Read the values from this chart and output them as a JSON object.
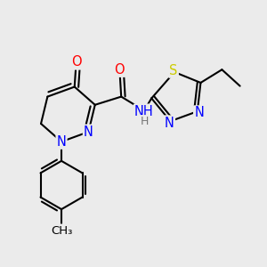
{
  "bg_color": "#ebebeb",
  "bond_color": "#000000",
  "bond_width": 1.5,
  "atom_colors": {
    "N": "#0000ff",
    "O": "#ff0000",
    "S": "#cccc00",
    "C": "#000000",
    "H": "#777777"
  },
  "font_size": 10.5,
  "small_font": 9.5,
  "dbo": 0.05
}
